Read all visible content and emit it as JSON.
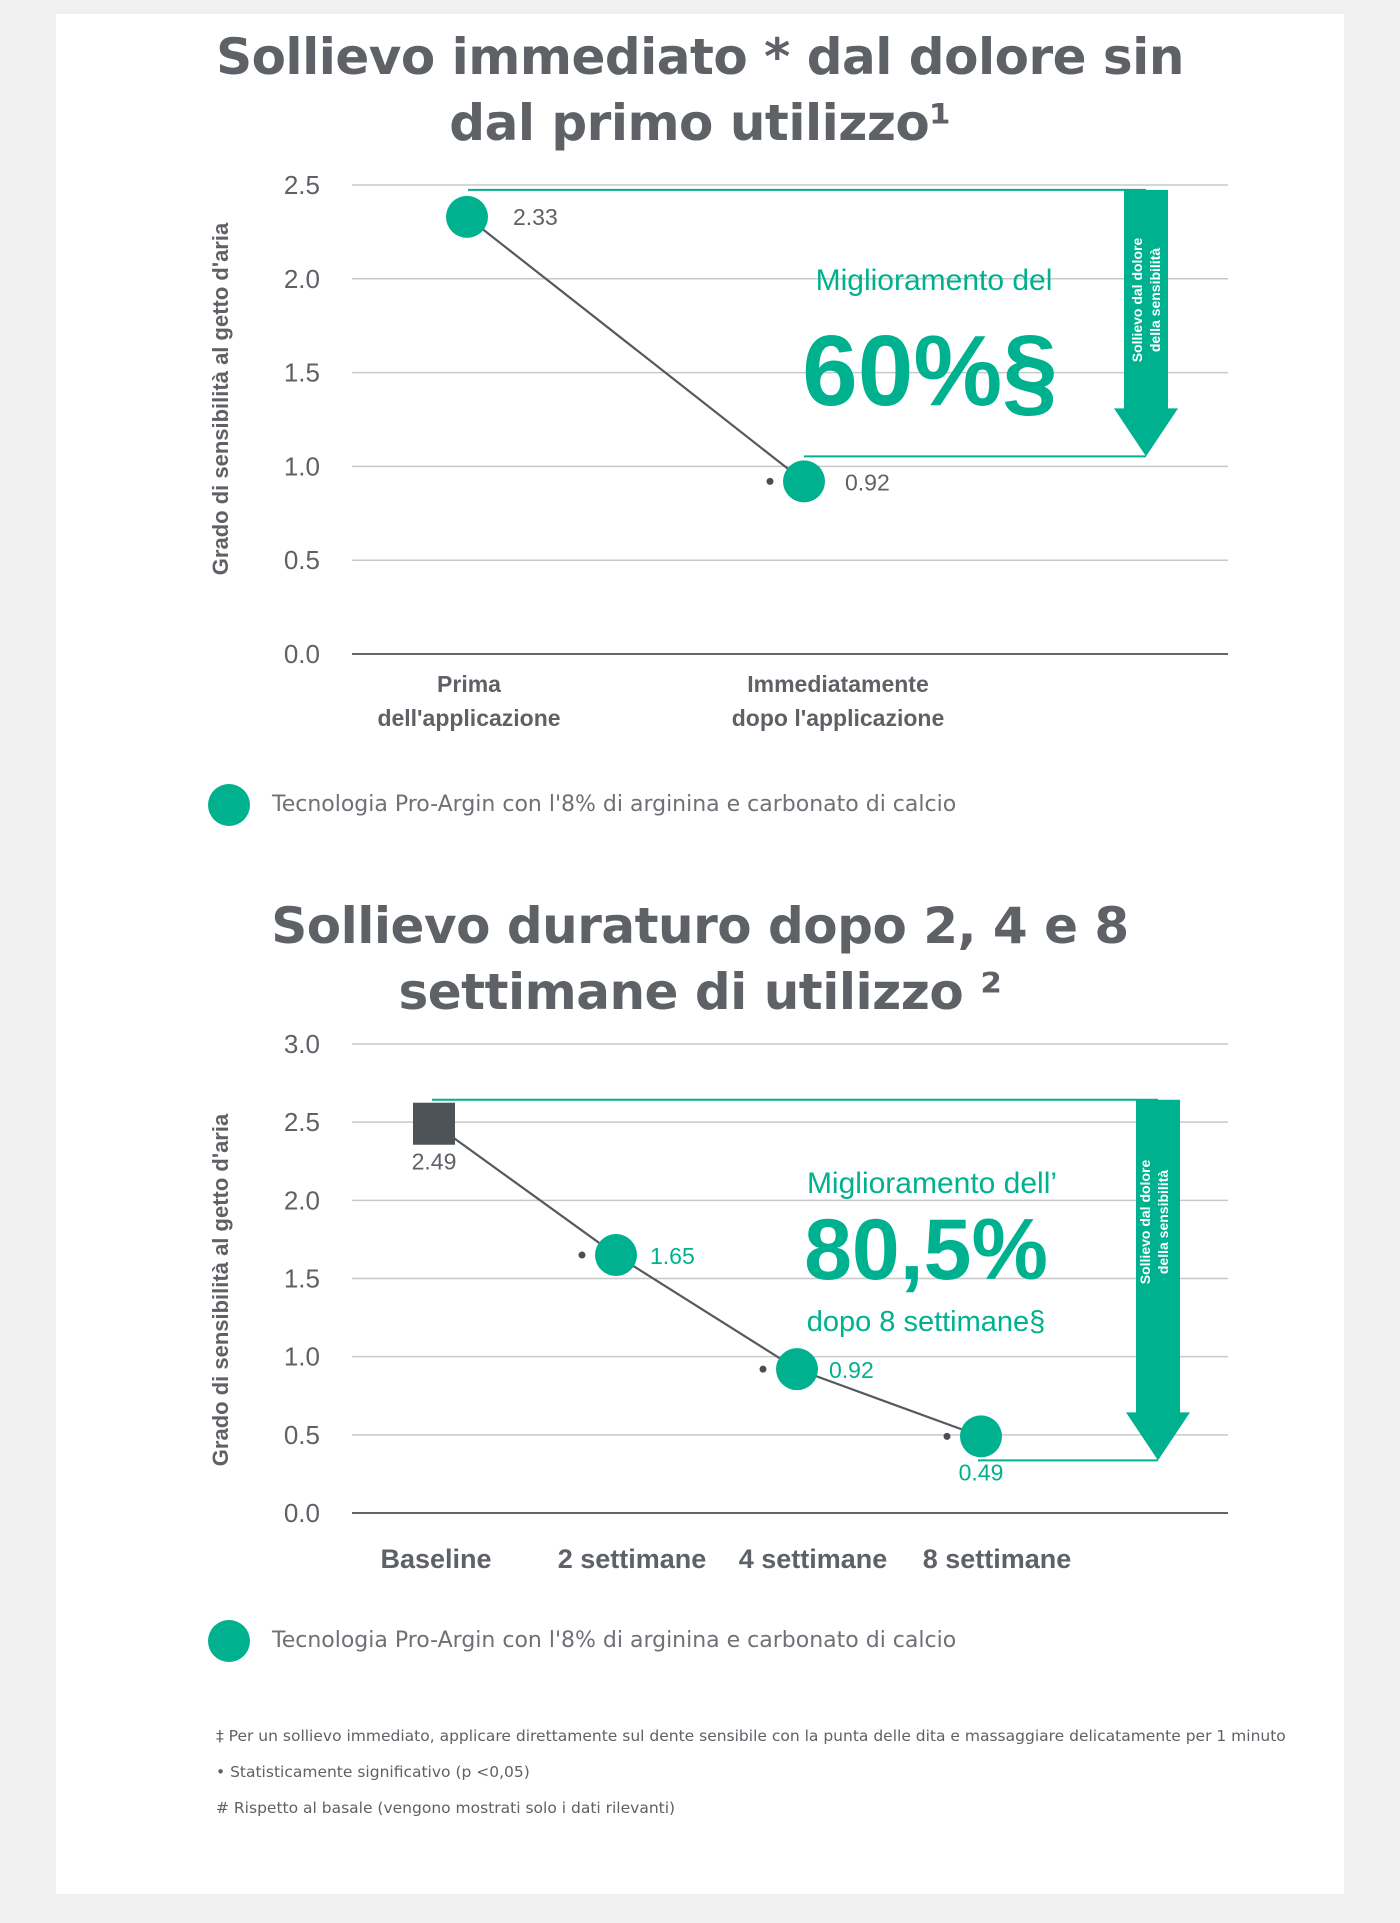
{
  "colors": {
    "teal": "#00b190",
    "gray_text": "#5e6166",
    "line": "#555a60",
    "baseline_square": "#4e5358",
    "grid": "#c8c8c8"
  },
  "chart_data": [
    {
      "type": "line",
      "title": "Sollievo immediato * dal dolore sin dal primo utilizzo¹",
      "ylabel": "Grado di sensibilità al getto d'aria",
      "ylim": [
        0,
        2.5
      ],
      "yticks": [
        "0.0",
        "0.5",
        "1.0",
        "1.5",
        "2.0",
        "2.5"
      ],
      "categories": [
        "Prima dell'applicazione",
        "Immediatamente dopo l'applicazione"
      ],
      "series": [
        {
          "name": "Tecnologia Pro-Argin con l'8% di arginina e carbonato di calcio",
          "values": [
            2.33,
            0.92
          ],
          "labels": [
            "2.33",
            "0.92"
          ],
          "significant": [
            false,
            true
          ]
        }
      ],
      "grid": true,
      "annotation": {
        "line1": "Miglioramento del",
        "big": "60%§",
        "arrow_label_1": "Sollievo dal dolore",
        "arrow_label_2": "della sensibilità"
      },
      "legend": "bottom-left"
    },
    {
      "type": "line",
      "title": "Sollievo duraturo dopo 2, 4 e 8 settimane di utilizzo ²",
      "ylabel": "Grado di sensibilità al getto d'aria",
      "ylim": [
        0,
        3.0
      ],
      "yticks": [
        "0.0",
        "0.5",
        "1.0",
        "1.5",
        "2.0",
        "2.5",
        "3.0"
      ],
      "categories": [
        "Baseline",
        "2 settimane",
        "4 settimane",
        "8 settimane"
      ],
      "series": [
        {
          "name": "Tecnologia Pro-Argin con l'8% di arginina e carbonato di calcio",
          "values": [
            2.49,
            1.65,
            0.92,
            0.49
          ],
          "labels": [
            "2.49",
            "1.65",
            "0.92",
            "0.49"
          ],
          "significant": [
            false,
            true,
            true,
            true
          ]
        }
      ],
      "grid": true,
      "annotation": {
        "line1": "Miglioramento dell’",
        "big": "80,5%",
        "line3": "dopo 8 settimane§",
        "arrow_label_1": "Sollievo dal dolore",
        "arrow_label_2": "della sensibilità"
      },
      "legend": "bottom-left"
    }
  ],
  "chart1": {
    "title_line1": "Sollievo immediato * dal dolore sin",
    "title_line2": "dal primo utilizzo¹",
    "x_label_1a": "Prima",
    "x_label_1b": "dell'applicazione",
    "x_label_2a": "Immediatamente",
    "x_label_2b": "dopo l'applicazione",
    "legend_label": "Tecnologia Pro-Argin con l'8% di arginina e carbonato di calcio"
  },
  "chart2": {
    "title_line1": "Sollievo duraturo dopo 2, 4 e 8",
    "title_line2": "settimane di utilizzo ²",
    "legend_label": "Tecnologia Pro-Argin con l'8% di arginina e carbonato di calcio"
  },
  "footnotes": {
    "note1": "‡ Per un sollievo immediato, applicare direttamente sul dente sensibile con la punta delle dita e massaggiare delicatamente per 1 minuto",
    "note2": "• Statisticamente significativo (p <0,05)",
    "note3": "# Rispetto al basale (vengono mostrati solo i dati rilevanti)"
  }
}
